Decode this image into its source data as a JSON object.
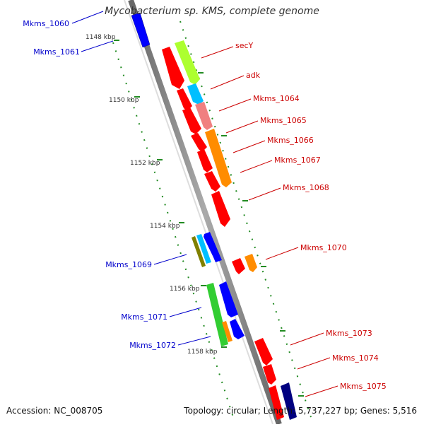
{
  "title": "Mycobacterium sp. KMS, complete genome",
  "footer": {
    "accession_label": "Accession:",
    "accession": "NC_008705",
    "topology_label": "Topology:",
    "topology": "circular;",
    "length_label": "Length:",
    "length": "5,737,227 bp;",
    "genes_label": "Genes:",
    "genes": "5,516"
  },
  "scale": {
    "ticks": [
      "1148 kbp",
      "1150 kbp",
      "1152 kbp",
      "1154 kbp",
      "1156 kbp",
      "1158 kbp"
    ]
  },
  "colors": {
    "red": "#ff0000",
    "blue": "#0000ff",
    "navy": "#000080",
    "orange": "#ff8c00",
    "lime": "#adff2f",
    "green": "#32cd32",
    "olive": "#808000",
    "cyan": "#00bfff",
    "pink": "#f08080",
    "forward_label": "#cc0000",
    "reverse_label": "#0000cc",
    "backbone": "#888888",
    "dots": "#228b22"
  },
  "genes": {
    "reverse": [
      "Mkms_1060",
      "Mkms_1061",
      "Mkms_1069",
      "Mkms_1071",
      "Mkms_1072"
    ],
    "forward": [
      "secY",
      "adk",
      "Mkms_1064",
      "Mkms_1065",
      "Mkms_1066",
      "Mkms_1067",
      "Mkms_1068",
      "Mkms_1070",
      "Mkms_1073",
      "Mkms_1074",
      "Mkms_1075"
    ]
  }
}
